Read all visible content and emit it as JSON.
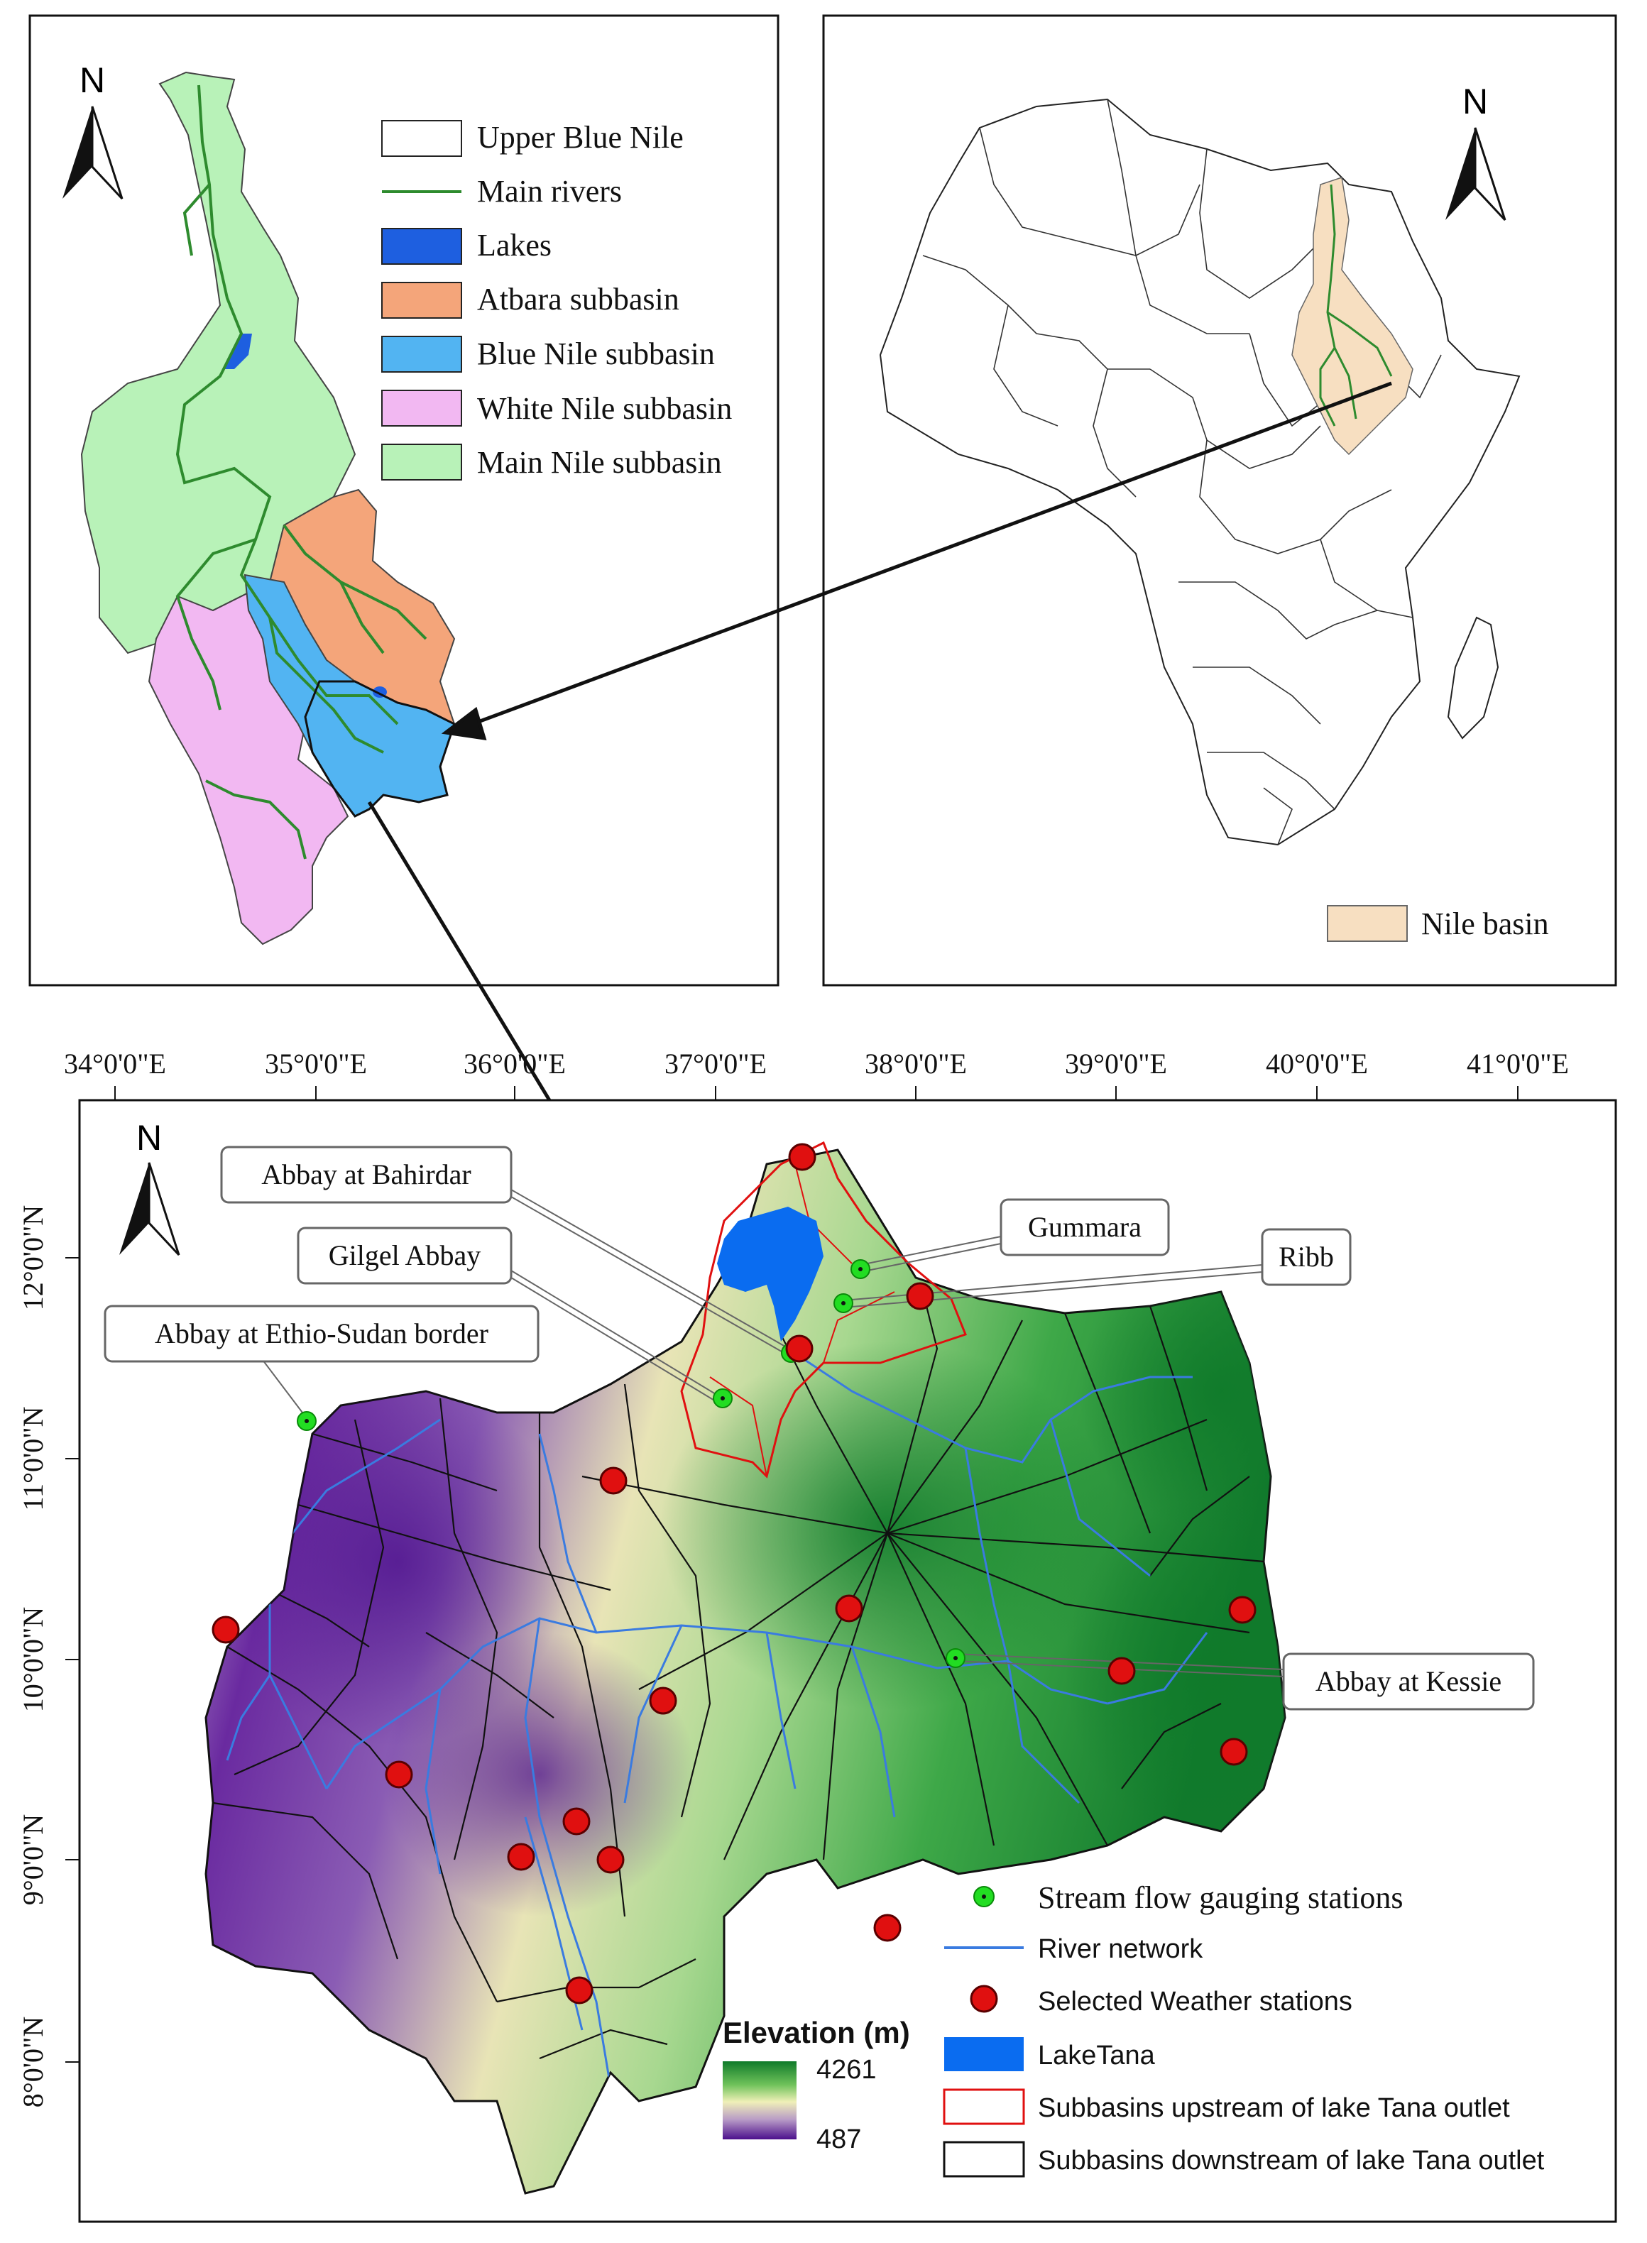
{
  "north_label": "N",
  "panel_nile": {
    "legend": [
      {
        "label": "Upper Blue Nile",
        "color": "#ffffff"
      },
      {
        "label": "Main rivers",
        "color": "#2e8b2e"
      },
      {
        "label": "Lakes",
        "color": "#1e5fe0"
      },
      {
        "label": "Atbara subbasin",
        "color": "#f4a57a"
      },
      {
        "label": "Blue Nile subbasin",
        "color": "#52b4f2"
      },
      {
        "label": "White Nile subbasin",
        "color": "#f2b8f2"
      },
      {
        "label": "Main Nile subbasin",
        "color": "#b8f2b8"
      }
    ]
  },
  "panel_africa": {
    "legend": [
      {
        "label": "Nile basin",
        "color": "#f7dfc1"
      }
    ]
  },
  "panel_main": {
    "x_ticks": [
      "34°0'0\"E",
      "35°0'0\"E",
      "36°0'0\"E",
      "37°0'0\"E",
      "38°0'0\"E",
      "39°0'0\"E",
      "40°0'0\"E",
      "41°0'0\"E"
    ],
    "y_ticks": [
      "12°0'0\"N",
      "11°0'0\"N",
      "10°0'0\"N",
      "9°0'0\"N",
      "8°0'0\"N"
    ],
    "callouts": [
      "Abbay at Bahirdar",
      "Gilgel Abbay",
      "Abbay at Ethio-Sudan border",
      "Gummara",
      "Ribb",
      "Abbay at Kessie"
    ],
    "elevation": {
      "title": "Elevation (m)",
      "max": "4261",
      "min": "487"
    },
    "legend": [
      {
        "label": "Stream flow gauging stations",
        "color": "#22dd22"
      },
      {
        "label": "River network",
        "color": "#3a7be0"
      },
      {
        "label": "Selected Weather stations",
        "color": "#e01010"
      },
      {
        "label": "LakeTana",
        "color": "#0a6cf0"
      },
      {
        "label": "Subbasins upstream of lake Tana outlet",
        "color": "#e01010"
      },
      {
        "label": "Subbasins downstream of lake Tana outlet",
        "color": "#000000"
      }
    ]
  }
}
